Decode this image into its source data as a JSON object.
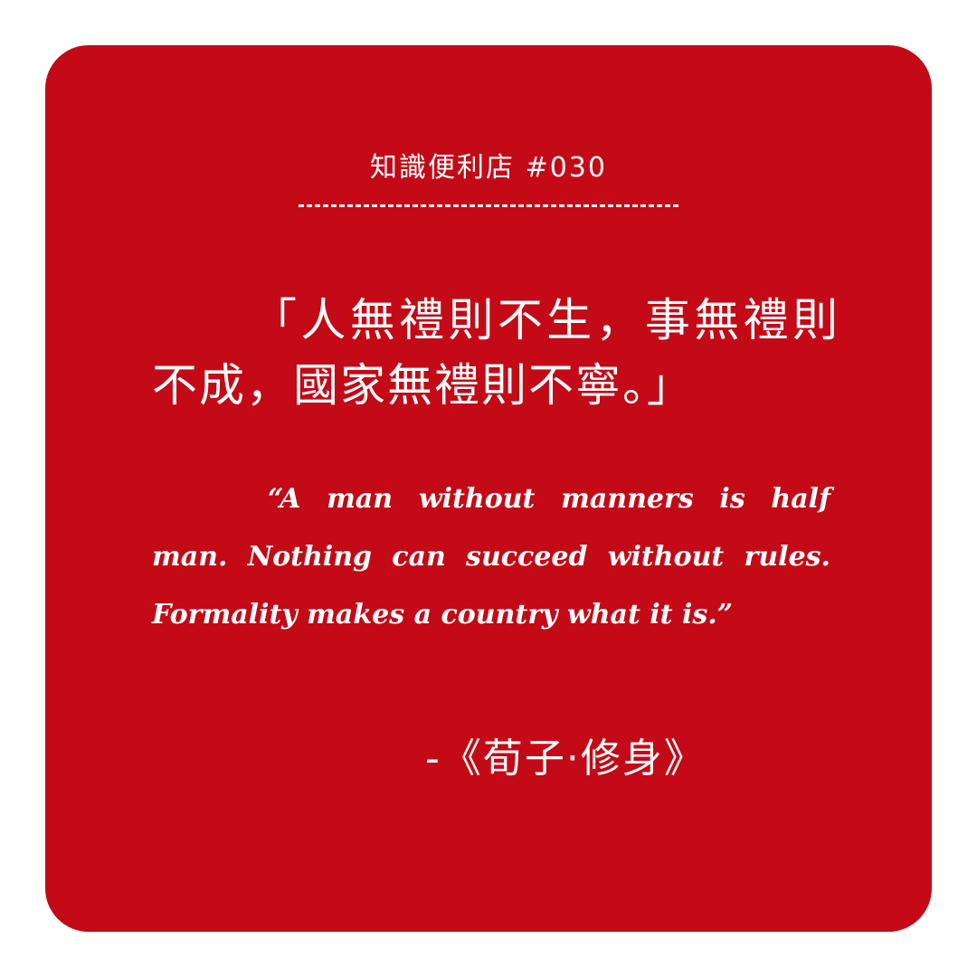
{
  "header": {
    "title": "知識便利店 #030"
  },
  "quote": {
    "chinese": "「人無禮則不生，事無禮則不成，國家無禮則不寧。」",
    "english": "“A man without manners is half man. Nothing can succeed without rules. Formality makes a country what it is.”",
    "source": "-《荀子·修身》"
  },
  "colors": {
    "background": "#ffffff",
    "card": "#c30a16",
    "text": "#ffffff"
  }
}
